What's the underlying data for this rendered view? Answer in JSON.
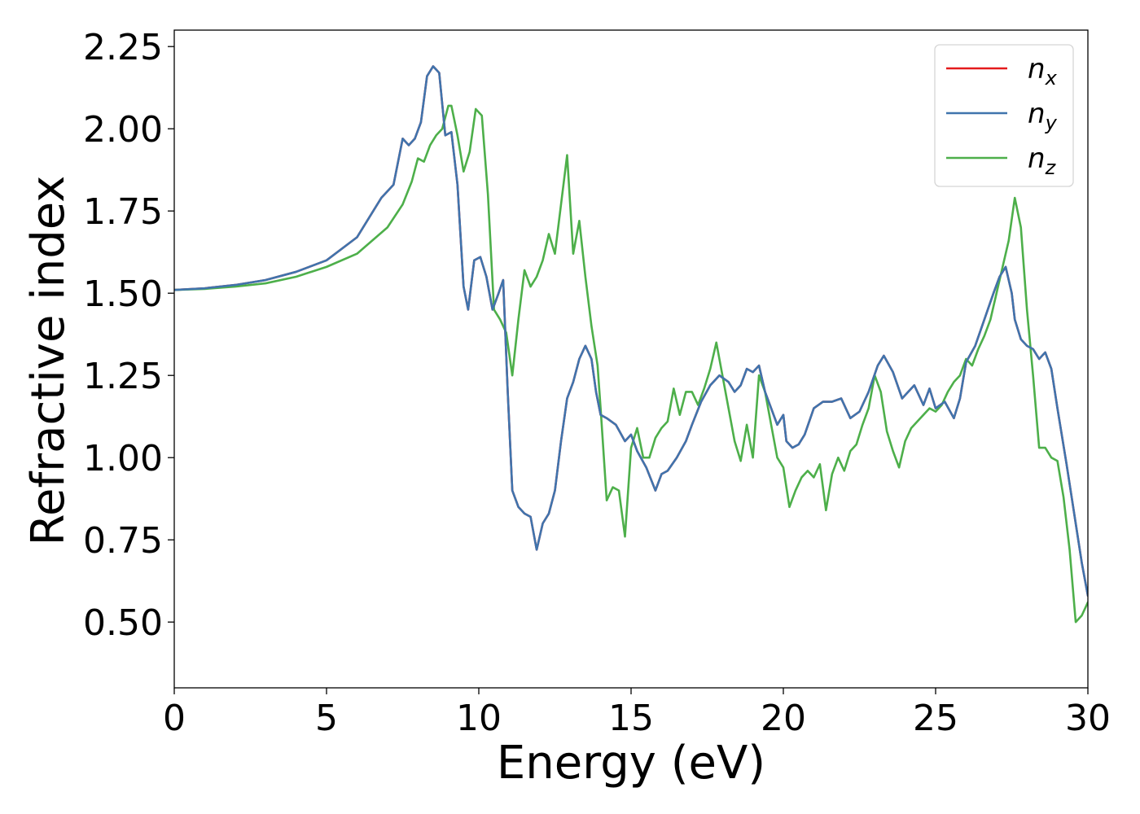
{
  "chart_data": {
    "type": "line",
    "title": "",
    "xlabel": "Energy (eV)",
    "ylabel": "Refractive index",
    "xlim": [
      0,
      30
    ],
    "ylim": [
      0.3,
      2.3
    ],
    "xticks": [
      0,
      5,
      10,
      15,
      20,
      25,
      30
    ],
    "xtick_labels": [
      "0",
      "5",
      "10",
      "15",
      "20",
      "25",
      "30"
    ],
    "yticks": [
      0.5,
      0.75,
      1.0,
      1.25,
      1.5,
      1.75,
      2.0,
      2.25
    ],
    "ytick_labels": [
      "0.50",
      "0.75",
      "1.00",
      "1.25",
      "1.50",
      "1.75",
      "2.00",
      "2.25"
    ],
    "grid": false,
    "legend": {
      "position": "top-right"
    },
    "series": [
      {
        "name": "n",
        "subscript": "x",
        "color": "#e41a1c",
        "x": [
          0,
          1,
          2,
          3,
          4,
          5,
          6,
          6.8,
          7,
          7.2,
          7.5,
          7.7,
          7.9,
          8.1,
          8.3,
          8.5,
          8.7,
          8.9,
          9.1,
          9.3,
          9.5,
          9.65,
          9.85,
          10.05,
          10.25,
          10.45,
          10.65,
          10.8,
          10.95,
          11.1,
          11.3,
          11.5,
          11.7,
          11.9,
          12.1,
          12.3,
          12.5,
          12.7,
          12.9,
          13.1,
          13.3,
          13.5,
          13.7,
          13.85,
          14.0,
          14.2,
          14.5,
          14.8,
          15.0,
          15.2,
          15.5,
          15.8,
          16.0,
          16.2,
          16.5,
          16.8,
          17.0,
          17.3,
          17.6,
          17.9,
          18.2,
          18.4,
          18.6,
          18.8,
          19.0,
          19.2,
          19.4,
          19.6,
          19.8,
          20.0,
          20.1,
          20.3,
          20.5,
          20.7,
          21.0,
          21.3,
          21.6,
          21.9,
          22.2,
          22.5,
          22.8,
          23.1,
          23.3,
          23.6,
          23.9,
          24.1,
          24.3,
          24.6,
          24.8,
          25.0,
          25.3,
          25.6,
          25.8,
          26.0,
          26.3,
          26.6,
          26.9,
          27.1,
          27.3,
          27.5,
          27.6,
          27.8,
          28.0,
          28.2,
          28.4,
          28.6,
          28.8,
          29.0,
          29.3,
          29.6,
          29.8,
          30.0
        ],
        "y": [
          1.51,
          1.515,
          1.525,
          1.54,
          1.565,
          1.6,
          1.67,
          1.79,
          1.81,
          1.83,
          1.97,
          1.95,
          1.97,
          2.02,
          2.16,
          2.19,
          2.17,
          1.98,
          1.99,
          1.83,
          1.52,
          1.45,
          1.6,
          1.61,
          1.55,
          1.45,
          1.5,
          1.54,
          1.2,
          0.9,
          0.85,
          0.83,
          0.82,
          0.72,
          0.8,
          0.83,
          0.9,
          1.05,
          1.18,
          1.23,
          1.3,
          1.34,
          1.3,
          1.2,
          1.13,
          1.12,
          1.1,
          1.05,
          1.07,
          1.02,
          0.97,
          0.9,
          0.95,
          0.96,
          1.0,
          1.05,
          1.1,
          1.17,
          1.22,
          1.25,
          1.23,
          1.2,
          1.22,
          1.27,
          1.26,
          1.28,
          1.2,
          1.15,
          1.1,
          1.13,
          1.05,
          1.03,
          1.04,
          1.07,
          1.15,
          1.17,
          1.17,
          1.18,
          1.12,
          1.14,
          1.2,
          1.28,
          1.31,
          1.26,
          1.18,
          1.2,
          1.22,
          1.16,
          1.21,
          1.15,
          1.17,
          1.12,
          1.18,
          1.29,
          1.34,
          1.42,
          1.5,
          1.55,
          1.58,
          1.5,
          1.42,
          1.36,
          1.34,
          1.33,
          1.3,
          1.32,
          1.27,
          1.15,
          0.98,
          0.8,
          0.68,
          0.58
        ]
      },
      {
        "name": "n",
        "subscript": "y",
        "color": "#3f74ad",
        "x": [
          0,
          1,
          2,
          3,
          4,
          5,
          6,
          6.8,
          7,
          7.2,
          7.5,
          7.7,
          7.9,
          8.1,
          8.3,
          8.5,
          8.7,
          8.9,
          9.1,
          9.3,
          9.5,
          9.65,
          9.85,
          10.05,
          10.25,
          10.45,
          10.65,
          10.8,
          10.95,
          11.1,
          11.3,
          11.5,
          11.7,
          11.9,
          12.1,
          12.3,
          12.5,
          12.7,
          12.9,
          13.1,
          13.3,
          13.5,
          13.7,
          13.85,
          14.0,
          14.2,
          14.5,
          14.8,
          15.0,
          15.2,
          15.5,
          15.8,
          16.0,
          16.2,
          16.5,
          16.8,
          17.0,
          17.3,
          17.6,
          17.9,
          18.2,
          18.4,
          18.6,
          18.8,
          19.0,
          19.2,
          19.4,
          19.6,
          19.8,
          20.0,
          20.1,
          20.3,
          20.5,
          20.7,
          21.0,
          21.3,
          21.6,
          21.9,
          22.2,
          22.5,
          22.8,
          23.1,
          23.3,
          23.6,
          23.9,
          24.1,
          24.3,
          24.6,
          24.8,
          25.0,
          25.3,
          25.6,
          25.8,
          26.0,
          26.3,
          26.6,
          26.9,
          27.1,
          27.3,
          27.5,
          27.6,
          27.8,
          28.0,
          28.2,
          28.4,
          28.6,
          28.8,
          29.0,
          29.3,
          29.6,
          29.8,
          30.0
        ],
        "y": [
          1.51,
          1.515,
          1.525,
          1.54,
          1.565,
          1.6,
          1.67,
          1.79,
          1.81,
          1.83,
          1.97,
          1.95,
          1.97,
          2.02,
          2.16,
          2.19,
          2.17,
          1.98,
          1.99,
          1.83,
          1.52,
          1.45,
          1.6,
          1.61,
          1.55,
          1.45,
          1.5,
          1.54,
          1.2,
          0.9,
          0.85,
          0.83,
          0.82,
          0.72,
          0.8,
          0.83,
          0.9,
          1.05,
          1.18,
          1.23,
          1.3,
          1.34,
          1.3,
          1.2,
          1.13,
          1.12,
          1.1,
          1.05,
          1.07,
          1.02,
          0.97,
          0.9,
          0.95,
          0.96,
          1.0,
          1.05,
          1.1,
          1.17,
          1.22,
          1.25,
          1.23,
          1.2,
          1.22,
          1.27,
          1.26,
          1.28,
          1.2,
          1.15,
          1.1,
          1.13,
          1.05,
          1.03,
          1.04,
          1.07,
          1.15,
          1.17,
          1.17,
          1.18,
          1.12,
          1.14,
          1.2,
          1.28,
          1.31,
          1.26,
          1.18,
          1.2,
          1.22,
          1.16,
          1.21,
          1.15,
          1.17,
          1.12,
          1.18,
          1.29,
          1.34,
          1.42,
          1.5,
          1.55,
          1.58,
          1.5,
          1.42,
          1.36,
          1.34,
          1.33,
          1.3,
          1.32,
          1.27,
          1.15,
          0.98,
          0.8,
          0.68,
          0.58
        ]
      },
      {
        "name": "n",
        "subscript": "z",
        "color": "#4daf4a",
        "x": [
          0,
          1,
          2,
          3,
          4,
          5,
          6,
          7,
          7.5,
          7.8,
          8.0,
          8.2,
          8.4,
          8.6,
          8.8,
          9.0,
          9.1,
          9.3,
          9.5,
          9.7,
          9.9,
          10.1,
          10.3,
          10.5,
          10.7,
          10.9,
          11.1,
          11.3,
          11.5,
          11.7,
          11.9,
          12.1,
          12.3,
          12.5,
          12.7,
          12.9,
          13.1,
          13.3,
          13.5,
          13.7,
          13.9,
          14.0,
          14.2,
          14.4,
          14.6,
          14.8,
          15.0,
          15.2,
          15.4,
          15.6,
          15.8,
          16.0,
          16.2,
          16.4,
          16.6,
          16.8,
          17.0,
          17.2,
          17.4,
          17.6,
          17.8,
          18.0,
          18.2,
          18.4,
          18.6,
          18.8,
          19.0,
          19.2,
          19.4,
          19.6,
          19.8,
          20.0,
          20.2,
          20.4,
          20.6,
          20.8,
          21.0,
          21.2,
          21.4,
          21.6,
          21.8,
          22.0,
          22.2,
          22.4,
          22.6,
          22.8,
          23.0,
          23.2,
          23.4,
          23.6,
          23.8,
          24.0,
          24.2,
          24.4,
          24.6,
          24.8,
          25.0,
          25.2,
          25.4,
          25.6,
          25.8,
          26.0,
          26.2,
          26.4,
          26.6,
          26.8,
          27.0,
          27.2,
          27.4,
          27.6,
          27.8,
          28.0,
          28.2,
          28.4,
          28.6,
          28.8,
          29.0,
          29.2,
          29.4,
          29.6,
          29.8,
          30.0
        ],
        "y": [
          1.51,
          1.513,
          1.52,
          1.53,
          1.55,
          1.58,
          1.62,
          1.7,
          1.77,
          1.84,
          1.91,
          1.9,
          1.95,
          1.98,
          2.0,
          2.07,
          2.07,
          1.98,
          1.87,
          1.93,
          2.06,
          2.04,
          1.8,
          1.45,
          1.42,
          1.38,
          1.25,
          1.42,
          1.57,
          1.52,
          1.55,
          1.6,
          1.68,
          1.62,
          1.77,
          1.92,
          1.62,
          1.72,
          1.55,
          1.4,
          1.28,
          1.15,
          0.87,
          0.91,
          0.9,
          0.76,
          1.03,
          1.09,
          1.0,
          1.0,
          1.06,
          1.09,
          1.11,
          1.21,
          1.13,
          1.2,
          1.2,
          1.16,
          1.21,
          1.27,
          1.35,
          1.25,
          1.15,
          1.05,
          0.99,
          1.1,
          1.0,
          1.25,
          1.2,
          1.1,
          1.0,
          0.97,
          0.85,
          0.9,
          0.94,
          0.96,
          0.94,
          0.98,
          0.84,
          0.95,
          1.0,
          0.96,
          1.02,
          1.04,
          1.1,
          1.15,
          1.25,
          1.2,
          1.08,
          1.02,
          0.97,
          1.05,
          1.09,
          1.11,
          1.13,
          1.15,
          1.14,
          1.16,
          1.2,
          1.23,
          1.25,
          1.3,
          1.28,
          1.33,
          1.37,
          1.42,
          1.5,
          1.58,
          1.66,
          1.79,
          1.7,
          1.45,
          1.25,
          1.03,
          1.03,
          1.0,
          0.99,
          0.88,
          0.72,
          0.5,
          0.52,
          0.56
        ]
      }
    ]
  }
}
